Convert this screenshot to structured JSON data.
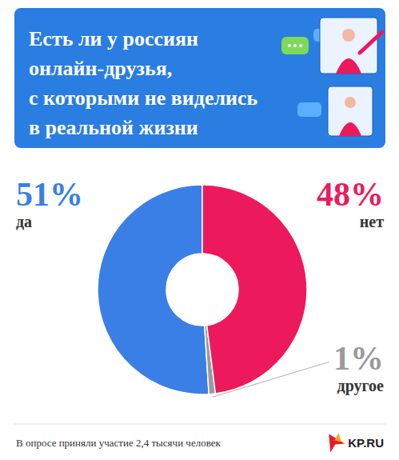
{
  "chart_data": {
    "type": "donut",
    "title": "Есть ли у россиян\nонлайн-друзья,\nс которыми не виделись\nв реальной жизни",
    "categories": [
      "да",
      "другое",
      "нет"
    ],
    "values": [
      51,
      1,
      48
    ],
    "value_labels": [
      "51%",
      "1%",
      "48%"
    ],
    "colors": [
      "#3a7fe6",
      "#9a9a9a",
      "#ec1a5d"
    ],
    "data_labels": true,
    "footnote": "В опросе приняли участие 2,4 тысячи человек",
    "source": "KP.RU"
  }
}
